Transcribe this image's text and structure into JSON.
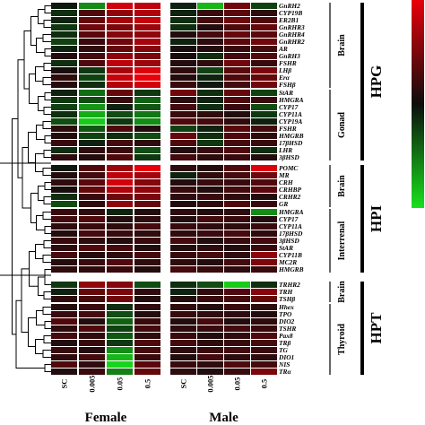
{
  "chart_data": {
    "type": "heatmap",
    "title": "",
    "columns": [
      "SC",
      "0.005",
      "0.05",
      "0.5",
      "SC",
      "0.005",
      "0.05",
      "0.5"
    ],
    "groups": [
      "Female",
      "Male"
    ],
    "sections": [
      {
        "system": "HPG",
        "blocks": [
          {
            "tissue": "Brain",
            "rows": [
              {
                "gene": "GnRH2",
                "values": [
                  -0.1,
                  -1.2,
                  1.8,
                  1.6,
                  -0.2,
                  -1.6,
                  0.9,
                  -0.5
                ]
              },
              {
                "gene": "CYP19B",
                "values": [
                  -0.3,
                  0.6,
                  1.2,
                  1.5,
                  -0.2,
                  0.4,
                  0.7,
                  0.3
                ]
              },
              {
                "gene": "ER2B1",
                "values": [
                  -0.2,
                  0.8,
                  1.4,
                  1.7,
                  -0.3,
                  0.5,
                  0.9,
                  0.6
                ]
              },
              {
                "gene": "GnRHR3",
                "values": [
                  -0.4,
                  0.9,
                  1.0,
                  1.3,
                  -0.3,
                  0.2,
                  0.6,
                  0.8
                ]
              },
              {
                "gene": "GnRHR4",
                "values": [
                  -0.3,
                  0.7,
                  1.1,
                  1.2,
                  0.2,
                  0.5,
                  0.8,
                  0.7
                ]
              },
              {
                "gene": "GnRHR2",
                "values": [
                  -0.5,
                  0.4,
                  0.9,
                  1.4,
                  -0.2,
                  0.3,
                  0.7,
                  0.9
                ]
              },
              {
                "gene": "AR",
                "values": [
                  -0.2,
                  0.3,
                  0.8,
                  1.1,
                  0.1,
                  0.2,
                  0.4,
                  0.5
                ]
              },
              {
                "gene": "GnRH3",
                "values": [
                  0.2,
                  0.5,
                  1.2,
                  1.0,
                  0.1,
                  -0.3,
                  0.5,
                  0.6
                ]
              },
              {
                "gene": "FSHR",
                "values": [
                  -0.3,
                  0.6,
                  1.6,
                  1.3,
                  0.2,
                  0.3,
                  0.9,
                  0.4
                ]
              },
              {
                "gene": "LHβ",
                "values": [
                  0.1,
                  -0.4,
                  1.4,
                  1.9,
                  0.3,
                  -0.5,
                  0.7,
                  1.0
                ]
              },
              {
                "gene": "Erα",
                "values": [
                  0.3,
                  -0.5,
                  1.7,
                  2.0,
                  0.2,
                  -0.2,
                  0.6,
                  0.8
                ]
              },
              {
                "gene": "FSHβ",
                "values": [
                  0.2,
                  -0.3,
                  1.5,
                  1.8,
                  0.4,
                  -0.1,
                  0.5,
                  0.9
                ]
              }
            ]
          },
          {
            "tissue": "Gonad",
            "rows": [
              {
                "gene": "StAR",
                "values": [
                  -0.2,
                  -0.9,
                  0.8,
                  -0.4,
                  0.9,
                  -0.3,
                  0.8,
                  -0.5
                ]
              },
              {
                "gene": "HMGRA",
                "values": [
                  -0.4,
                  -0.6,
                  0.4,
                  -0.8,
                  0.3,
                  -0.2,
                  0.6,
                  0.4
                ]
              },
              {
                "gene": "CYP17",
                "values": [
                  -0.5,
                  -1.3,
                  -0.2,
                  -0.7,
                  0.5,
                  -0.3,
                  0.4,
                  -0.6
                ]
              },
              {
                "gene": "CYP11A",
                "values": [
                  -0.3,
                  -1.5,
                  -0.6,
                  -1.0,
                  0.4,
                  0.3,
                  0.2,
                  -0.4
                ]
              },
              {
                "gene": "CYP19A",
                "values": [
                  -0.6,
                  -1.8,
                  -0.4,
                  -1.2,
                  0.6,
                  0.5,
                  0.3,
                  -0.2
                ]
              },
              {
                "gene": "FSHR",
                "values": [
                  0.3,
                  -0.7,
                  0.6,
                  0.2,
                  -0.5,
                  -0.2,
                  0.7,
                  0.5
                ]
              },
              {
                "gene": "HMGRB",
                "values": [
                  0.2,
                  -0.5,
                  -0.3,
                  -0.6,
                  0.8,
                  -0.3,
                  0.6,
                  0.3
                ]
              },
              {
                "gene": "17βHSD",
                "values": [
                  0.4,
                  -0.2,
                  0.5,
                  0.3,
                  0.6,
                  -0.4,
                  0.5,
                  0.4
                ]
              },
              {
                "gene": "LHR",
                "values": [
                  -0.3,
                  0.3,
                  0.4,
                  -0.6,
                  0.2,
                  0.4,
                  0.6,
                  -0.3
                ]
              },
              {
                "gene": "3βHSD",
                "values": [
                  0.3,
                  0.2,
                  0.6,
                  -0.4,
                  0.5,
                  0.3,
                  0.4,
                  0.2
                ]
              }
            ]
          }
        ]
      },
      {
        "system": "HPI",
        "blocks": [
          {
            "tissue": "Brain",
            "rows": [
              {
                "gene": "POMC",
                "values": [
                  -0.1,
                  0.6,
                  1.3,
                  2.0,
                  0.3,
                  0.2,
                  0.6,
                  1.9
                ]
              },
              {
                "gene": "MR",
                "values": [
                  0.2,
                  0.5,
                  1.6,
                  1.4,
                  -0.2,
                  0.3,
                  0.5,
                  0.9
                ]
              },
              {
                "gene": "CRH",
                "values": [
                  0.3,
                  0.7,
                  1.8,
                  1.1,
                  0.2,
                  0.4,
                  0.4,
                  0.6
                ]
              },
              {
                "gene": "CRHBP",
                "values": [
                  0.1,
                  0.8,
                  1.5,
                  1.2,
                  0.4,
                  0.2,
                  0.5,
                  0.7
                ]
              },
              {
                "gene": "CRHR2",
                "values": [
                  -0.3,
                  0.4,
                  0.9,
                  1.0,
                  0.3,
                  0.4,
                  0.3,
                  0.2
                ]
              },
              {
                "gene": "GR",
                "values": [
                  -0.6,
                  0.3,
                  1.2,
                  0.8,
                  0.2,
                  0.3,
                  0.6,
                  0.4
                ]
              }
            ]
          },
          {
            "tissue": "Interrenal",
            "rows": [
              {
                "gene": "HMGRA",
                "values": [
                  0.4,
                  0.3,
                  -0.2,
                  0.2,
                  0.3,
                  0.2,
                  0.3,
                  -1.2
                ]
              },
              {
                "gene": "CYP17",
                "values": [
                  0.5,
                  0.6,
                  0.2,
                  0.3,
                  0.2,
                  0.5,
                  0.4,
                  0.2
                ]
              },
              {
                "gene": "CYP11A",
                "values": [
                  0.3,
                  0.4,
                  0.3,
                  0.5,
                  0.4,
                  0.3,
                  0.3,
                  0.4
                ]
              },
              {
                "gene": "17βHSD",
                "values": [
                  0.2,
                  0.5,
                  0.4,
                  0.3,
                  0.3,
                  0.4,
                  0.5,
                  0.3
                ]
              },
              {
                "gene": "3βHSD",
                "values": [
                  0.4,
                  0.3,
                  0.2,
                  0.4,
                  0.5,
                  0.2,
                  0.4,
                  0.5
                ]
              },
              {
                "gene": "StAR",
                "values": [
                  0.3,
                  0.6,
                  0.5,
                  0.2,
                  0.2,
                  0.3,
                  0.2,
                  0.4
                ]
              },
              {
                "gene": "CYP11B",
                "values": [
                  0.5,
                  0.2,
                  0.3,
                  0.5,
                  0.4,
                  0.5,
                  0.3,
                  1.2
                ]
              },
              {
                "gene": "MC2R",
                "values": [
                  0.2,
                  0.4,
                  0.6,
                  0.3,
                  0.3,
                  0.2,
                  0.5,
                  1.0
                ]
              },
              {
                "gene": "HMGRB",
                "values": [
                  0.3,
                  0.3,
                  0.4,
                  0.2,
                  0.5,
                  0.4,
                  0.3,
                  0.4
                ]
              }
            ]
          }
        ]
      },
      {
        "system": "HPT",
        "blocks": [
          {
            "tissue": "Brain",
            "rows": [
              {
                "gene": "TRHR2",
                "values": [
                  -0.4,
                  1.2,
                  1.1,
                  -0.6,
                  -0.3,
                  -0.6,
                  -1.8,
                  -0.3
                ]
              },
              {
                "gene": "TRH",
                "values": [
                  -0.2,
                  0.8,
                  1.0,
                  0.3,
                  -0.2,
                  0.3,
                  0.6,
                  1.1
                ]
              },
              {
                "gene": "TSHβ",
                "values": [
                  0.3,
                  0.5,
                  0.9,
                  0.2,
                  0.2,
                  0.4,
                  0.5,
                  0.8
                ]
              }
            ]
          },
          {
            "tissue": "Thyroid",
            "rows": [
              {
                "gene": "Hhex",
                "values": [
                  0.2,
                  0.4,
                  -0.3,
                  0.3,
                  0.3,
                  0.2,
                  0.4,
                  0.3
                ]
              },
              {
                "gene": "TPO",
                "values": [
                  0.4,
                  0.5,
                  -0.6,
                  0.2,
                  0.4,
                  0.3,
                  0.3,
                  0.2
                ]
              },
              {
                "gene": "DIO2",
                "values": [
                  0.6,
                  0.2,
                  -0.8,
                  0.4,
                  0.2,
                  0.5,
                  0.2,
                  0.3
                ]
              },
              {
                "gene": "TSHR",
                "values": [
                  0.3,
                  0.6,
                  -0.5,
                  0.5,
                  0.3,
                  0.4,
                  0.5,
                  0.4
                ]
              },
              {
                "gene": "Pax8",
                "values": [
                  0.5,
                  0.3,
                  -0.7,
                  0.3,
                  0.4,
                  0.2,
                  0.3,
                  0.6
                ]
              },
              {
                "gene": "TRβ",
                "values": [
                  0.2,
                  0.4,
                  -0.4,
                  0.6,
                  0.5,
                  0.3,
                  0.4,
                  0.5
                ]
              },
              {
                "gene": "TG",
                "values": [
                  0.4,
                  0.2,
                  -1.2,
                  0.5,
                  0.3,
                  0.4,
                  0.5,
                  0.4
                ]
              },
              {
                "gene": "DIO1",
                "values": [
                  0.3,
                  0.5,
                  -1.6,
                  0.4,
                  0.2,
                  0.5,
                  0.3,
                  0.3
                ]
              },
              {
                "gene": "NIS",
                "values": [
                  0.6,
                  0.3,
                  -1.9,
                  0.7,
                  0.4,
                  0.3,
                  0.6,
                  0.5
                ]
              },
              {
                "gene": "TRα",
                "values": [
                  0.2,
                  0.4,
                  -1.1,
                  0.8,
                  0.3,
                  0.2,
                  0.4,
                  1.0
                ]
              }
            ]
          }
        ]
      }
    ],
    "color_scale": {
      "high": "#e8000b",
      "mid": "#0d0d0d",
      "low": "#19e01c",
      "range": [
        -2,
        2
      ]
    },
    "legend_placement": "top-right",
    "grid": false
  }
}
